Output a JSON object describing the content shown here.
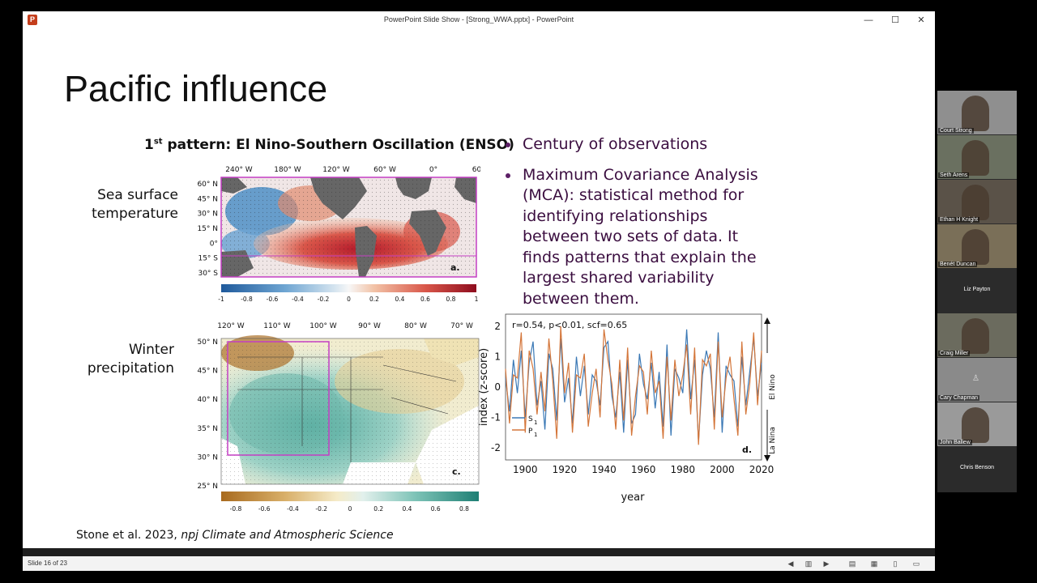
{
  "window": {
    "title": "PowerPoint Slide Show - [Strong_WWA.pptx] - PowerPoint",
    "app_icon": "P",
    "minimize": "—",
    "maximize": "☐",
    "close": "✕"
  },
  "slide": {
    "title": "Pacific influence",
    "pattern_title_pre": "1",
    "pattern_title_sup": "st",
    "pattern_title_post": " pattern: El Nino-Southern Oscillation (ENSO)",
    "label_sst_1": "Sea surface",
    "label_sst_2": "temperature",
    "label_precip_1": "Winter",
    "label_precip_2": "precipitation",
    "bullets": [
      "Century of observations",
      "Maximum Covariance Analysis (MCA): statistical method for identifying relationships between two sets of data. It finds patterns that explain the largest shared variability between them."
    ],
    "citation_plain": "Stone et al. 2023, ",
    "citation_italic": "npj Climate and Atmospheric Science"
  },
  "map_a": {
    "lon_labels": [
      "240° W",
      "180° W",
      "120° W",
      "60° W",
      "0°",
      "60° E"
    ],
    "lat_labels": [
      "60° N",
      "45° N",
      "30° N",
      "15° N",
      "0°",
      "15° S",
      "30° S"
    ],
    "colorbar_ticks": [
      "-1",
      "-0.8",
      "-0.6",
      "-0.4",
      "-0.2",
      "0",
      "0.2",
      "0.4",
      "0.6",
      "0.8",
      "1"
    ],
    "panel_label": "a."
  },
  "map_c": {
    "lon_labels": [
      "120° W",
      "110° W",
      "100° W",
      "90° W",
      "80° W",
      "70° W"
    ],
    "lat_labels": [
      "50° N",
      "45° N",
      "40° N",
      "35° N",
      "30° N",
      "25° N"
    ],
    "colorbar_ticks": [
      "-0.8",
      "-0.6",
      "-0.4",
      "-0.2",
      "0",
      "0.2",
      "0.4",
      "0.6",
      "0.8"
    ],
    "panel_label": "c."
  },
  "chart_data": {
    "type": "line",
    "annotation": "r=0.54, p<0.01, scf=0.65",
    "xlabel": "year",
    "ylabel": "index (z-score)",
    "xlim": [
      1890,
      2020
    ],
    "ylim": [
      -2.4,
      2.4
    ],
    "x_ticks": [
      1900,
      1920,
      1940,
      1960,
      1980,
      2000,
      2020
    ],
    "y_ticks": [
      2,
      1,
      0,
      -1,
      -2
    ],
    "arrow_up_label": "El Nino",
    "arrow_down_label": "La Nina",
    "panel_label": "d.",
    "legend": [
      {
        "main": "S",
        "sub": "1",
        "color": "#3a78b5"
      },
      {
        "main": "P",
        "sub": "1",
        "color": "#d4763a"
      }
    ],
    "x": [
      1890,
      1892,
      1894,
      1896,
      1898,
      1900,
      1902,
      1904,
      1906,
      1908,
      1910,
      1912,
      1914,
      1916,
      1918,
      1920,
      1922,
      1924,
      1926,
      1928,
      1930,
      1932,
      1934,
      1936,
      1938,
      1940,
      1942,
      1944,
      1946,
      1948,
      1950,
      1952,
      1954,
      1956,
      1958,
      1960,
      1962,
      1964,
      1966,
      1968,
      1970,
      1972,
      1974,
      1976,
      1978,
      1980,
      1982,
      1984,
      1986,
      1988,
      1990,
      1992,
      1994,
      1996,
      1998,
      2000,
      2002,
      2004,
      2006,
      2008,
      2010,
      2012,
      2014,
      2016,
      2018,
      2020
    ],
    "series": [
      {
        "name": "S1",
        "color": "#3a78b5",
        "values": [
          0.3,
          -0.8,
          0.9,
          -0.2,
          1.2,
          -1.0,
          0.8,
          1.5,
          -0.6,
          0.2,
          -1.4,
          1.1,
          0.6,
          -1.1,
          1.6,
          -0.5,
          0.3,
          -1.2,
          1.0,
          -0.3,
          0.7,
          -0.9,
          0.4,
          0.2,
          -0.6,
          1.3,
          1.5,
          -0.3,
          -1.0,
          0.5,
          -1.5,
          0.9,
          -1.2,
          -0.9,
          1.1,
          0.1,
          -0.4,
          0.8,
          -0.7,
          0.5,
          -1.3,
          1.4,
          -1.6,
          0.6,
          0.3,
          -0.2,
          1.9,
          -0.4,
          0.9,
          -1.8,
          0.4,
          1.2,
          0.6,
          -1.0,
          1.8,
          -1.5,
          0.7,
          0.4,
          0.2,
          -1.3,
          1.0,
          -0.6,
          0.5,
          1.6,
          -0.3,
          0.8
        ]
      },
      {
        "name": "P1",
        "color": "#d4763a",
        "values": [
          0.6,
          -1.2,
          0.4,
          0.3,
          1.8,
          -1.5,
          1.2,
          0.6,
          -0.9,
          0.5,
          -0.8,
          1.6,
          0.2,
          -1.7,
          2.0,
          -0.2,
          0.8,
          -1.5,
          0.4,
          0.3,
          1.1,
          -1.3,
          -0.2,
          0.6,
          -1.0,
          1.9,
          0.9,
          0.1,
          -1.4,
          0.9,
          -1.1,
          1.3,
          -1.6,
          -0.3,
          0.7,
          0.5,
          -0.9,
          1.2,
          -0.2,
          0.2,
          -1.7,
          1.0,
          -1.1,
          0.9,
          -0.3,
          0.4,
          1.4,
          -0.9,
          1.3,
          -1.9,
          0.9,
          0.7,
          1.1,
          -1.4,
          1.5,
          -1.0,
          0.3,
          1.0,
          -0.4,
          -1.6,
          1.5,
          -0.9,
          0.1,
          1.8,
          -0.6,
          1.2
        ]
      }
    ]
  },
  "participants": [
    {
      "name": "Court Strong",
      "video": true
    },
    {
      "name": "Seth Arens",
      "video": true
    },
    {
      "name": "Ethan H Knight",
      "video": true
    },
    {
      "name": "Benét Duncan",
      "video": true
    },
    {
      "name": "Liz Payton",
      "video": false
    },
    {
      "name": "Craig Miller",
      "video": true
    },
    {
      "name": "Cary Chapman",
      "video": false
    },
    {
      "name": "John Ballew",
      "video": true
    },
    {
      "name": "Chris Benson",
      "video": false
    }
  ],
  "status": {
    "slide_counter": "Slide 16 of 23"
  }
}
